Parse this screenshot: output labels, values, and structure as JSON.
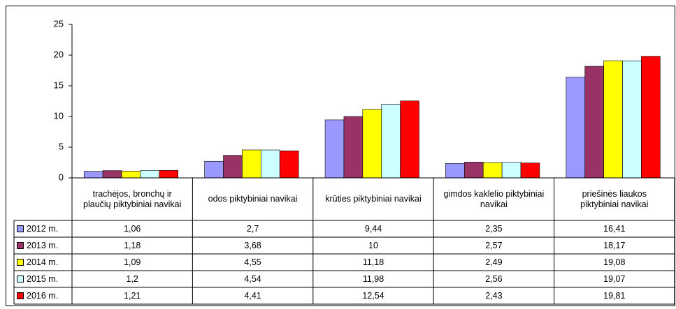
{
  "chart_data": {
    "type": "bar",
    "categories": [
      "trachėjos, bronchų ir plaučių piktybiniai navikai",
      "odos piktybiniai navikai",
      "krūties piktybiniai navikai",
      "gimdos kaklelio piktybiniai navikai",
      "priešinės liaukos piktybiniai navikai"
    ],
    "series": [
      {
        "name": "2012 m.",
        "color": "#9999ff",
        "values": [
          1.06,
          2.7,
          9.44,
          2.35,
          16.41
        ],
        "value_labels": [
          "1,06",
          "2,7",
          "9,44",
          "2,35",
          "16,41"
        ]
      },
      {
        "name": "2013 m.",
        "color": "#993366",
        "values": [
          1.18,
          3.68,
          10,
          2.57,
          18.17
        ],
        "value_labels": [
          "1,18",
          "3,68",
          "10",
          "2,57",
          "18,17"
        ]
      },
      {
        "name": "2014 m.",
        "color": "#ffff00",
        "values": [
          1.09,
          4.55,
          11.18,
          2.49,
          19.08
        ],
        "value_labels": [
          "1,09",
          "4,55",
          "11,18",
          "2,49",
          "19,08"
        ]
      },
      {
        "name": "2015 m.",
        "color": "#ccffff",
        "values": [
          1.2,
          4.54,
          11.98,
          2.56,
          19.07
        ],
        "value_labels": [
          "1,2",
          "4,54",
          "11,98",
          "2,56",
          "19,07"
        ]
      },
      {
        "name": "2016 m.",
        "color": "#ff0000",
        "values": [
          1.21,
          4.41,
          12.54,
          2.43,
          19.81
        ],
        "value_labels": [
          "1,21",
          "4,41",
          "12,54",
          "2,43",
          "19,81"
        ]
      }
    ],
    "ylim": [
      0,
      25
    ],
    "yticks": [
      0,
      5,
      10,
      15,
      20,
      25
    ]
  }
}
